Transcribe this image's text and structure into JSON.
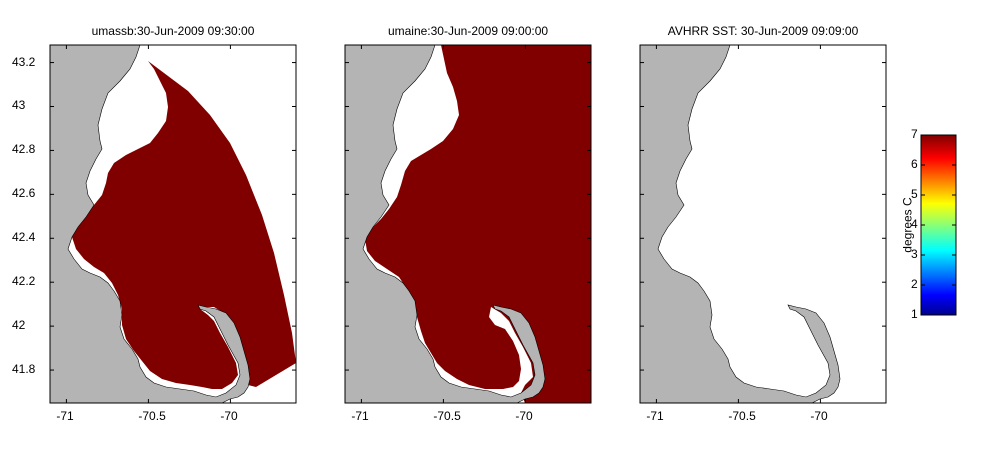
{
  "chart_data": {
    "type": "heatmap",
    "panels": [
      {
        "title": "umassb:30-Jun-2009 09:30:00",
        "model": "umassb",
        "field": "modeled temperature",
        "values_shown_degC": 7,
        "coverage": "model-domain"
      },
      {
        "title": "umaine:30-Jun-2009 09:00:00",
        "model": "umaine",
        "field": "modeled temperature",
        "values_shown_degC": 7,
        "coverage": "full-ocean"
      },
      {
        "title": "AVHRR SST: 30-Jun-2009 09:09:00",
        "model": "AVHRR",
        "field": "sea surface temperature",
        "values_shown_degC": null,
        "coverage": "none"
      }
    ],
    "xlim": [
      -71.1,
      -69.6
    ],
    "ylim": [
      41.65,
      43.28
    ],
    "xticks": [
      -71,
      -70.5,
      -70
    ],
    "xtick_labels": [
      "-71",
      "-70.5",
      "-70"
    ],
    "yticks": [
      43.2,
      43,
      42.8,
      42.6,
      42.4,
      42.2,
      42,
      41.8
    ],
    "ytick_labels": [
      "43.2",
      "43",
      "42.8",
      "42.6",
      "42.4",
      "42.2",
      "42",
      "41.8"
    ],
    "colorbar": {
      "min": 1,
      "max": 7,
      "ticks": [
        1,
        2,
        3,
        4,
        5,
        6,
        7
      ],
      "tick_labels": [
        "1",
        "2",
        "3",
        "4",
        "5",
        "6",
        "7"
      ],
      "label": "degrees C",
      "colormap": "jet"
    },
    "colors": {
      "land": "#b4b4b4",
      "ocean_no_data": "#ffffff",
      "warm": "#800000"
    }
  }
}
